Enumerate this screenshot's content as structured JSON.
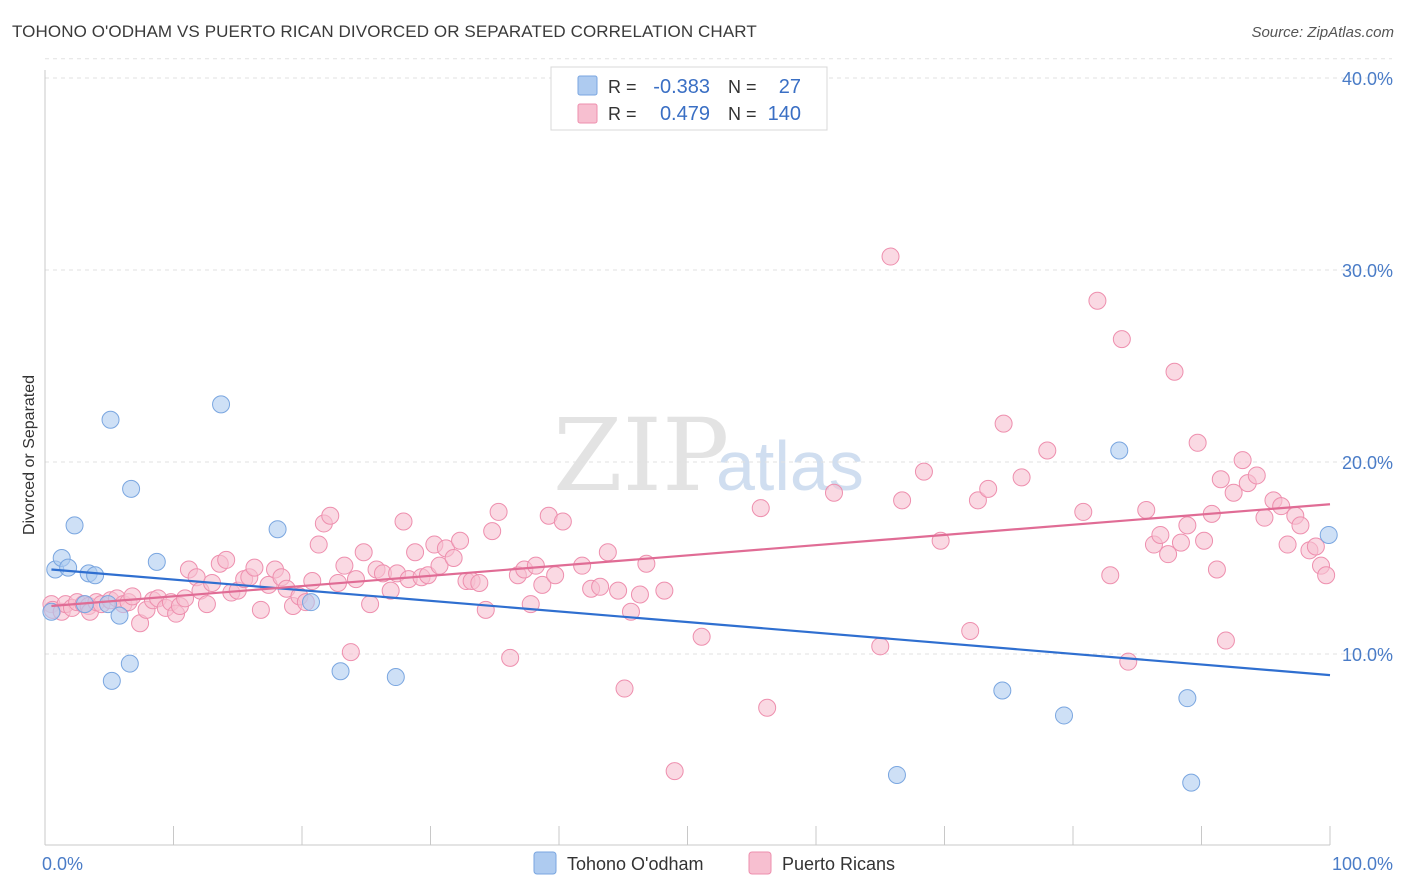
{
  "header": {
    "title": "TOHONO O'ODHAM VS PUERTO RICAN DIVORCED OR SEPARATED CORRELATION CHART",
    "source": "Source: ZipAtlas.com"
  },
  "watermark": {
    "zip": "ZIP",
    "atlas": "atlas"
  },
  "legend": {
    "r_label": "R =",
    "n_label": "N =",
    "rows": [
      {
        "r": "-0.383",
        "n": "27"
      },
      {
        "r": "0.479",
        "n": "140"
      }
    ]
  },
  "bottom_legend": [
    "Tohono O'odham",
    "Puerto Ricans"
  ],
  "colors": {
    "blue_fill": "#aecbf0",
    "blue_stroke": "#7aa6e0",
    "blue_line": "#2f6fd0",
    "pink_fill": "#f7bfd0",
    "pink_stroke": "#ee8fae",
    "pink_line": "#e06c95",
    "tick_text": "#4a7cc7"
  },
  "chart_data": {
    "type": "scatter",
    "title": "TOHONO O'ODHAM VS PUERTO RICAN DIVORCED OR SEPARATED CORRELATION CHART",
    "ylabel": "Divorced or Separated",
    "xlabel": "",
    "xlim": [
      0,
      100
    ],
    "ylim": [
      0,
      42
    ],
    "yticks": [
      10,
      20,
      30,
      40
    ],
    "ytick_labels": [
      "10.0%",
      "20.0%",
      "30.0%",
      "40.0%"
    ],
    "xtick_labels": [
      "0.0%",
      "100.0%"
    ],
    "grid": true,
    "legend_position": "top-center",
    "series": [
      {
        "name": "Tohono O'odham",
        "color": "blue",
        "trend": {
          "x": [
            0.5,
            100
          ],
          "y": [
            14.4,
            8.9
          ]
        },
        "points": [
          [
            0.5,
            12.2
          ],
          [
            0.8,
            14.4
          ],
          [
            1.3,
            15.0
          ],
          [
            1.8,
            14.5
          ],
          [
            2.3,
            16.7
          ],
          [
            3.1,
            12.6
          ],
          [
            3.4,
            14.2
          ],
          [
            3.9,
            14.1
          ],
          [
            4.9,
            12.6
          ],
          [
            5.1,
            22.2
          ],
          [
            5.2,
            8.6
          ],
          [
            5.8,
            12.0
          ],
          [
            6.6,
            9.5
          ],
          [
            6.7,
            18.6
          ],
          [
            8.7,
            14.8
          ],
          [
            13.7,
            23.0
          ],
          [
            18.1,
            16.5
          ],
          [
            20.7,
            12.7
          ],
          [
            23.0,
            9.1
          ],
          [
            27.3,
            8.8
          ],
          [
            66.3,
            3.7
          ],
          [
            74.5,
            8.1
          ],
          [
            79.3,
            6.8
          ],
          [
            83.6,
            20.6
          ],
          [
            88.9,
            7.7
          ],
          [
            89.2,
            3.3
          ],
          [
            99.9,
            16.2
          ]
        ]
      },
      {
        "name": "Puerto Ricans",
        "color": "pink",
        "trend": {
          "x": [
            0.5,
            100
          ],
          "y": [
            12.5,
            17.8
          ]
        },
        "points": [
          [
            0.5,
            12.6
          ],
          [
            0.6,
            12.3
          ],
          [
            1.3,
            12.2
          ],
          [
            1.6,
            12.6
          ],
          [
            2.1,
            12.4
          ],
          [
            2.5,
            12.7
          ],
          [
            3.0,
            12.6
          ],
          [
            3.4,
            12.5
          ],
          [
            3.5,
            12.2
          ],
          [
            4.0,
            12.7
          ],
          [
            4.4,
            12.6
          ],
          [
            5.1,
            12.8
          ],
          [
            5.6,
            12.9
          ],
          [
            6.1,
            12.6
          ],
          [
            6.5,
            12.7
          ],
          [
            6.8,
            13.0
          ],
          [
            7.4,
            11.6
          ],
          [
            7.9,
            12.3
          ],
          [
            8.4,
            12.8
          ],
          [
            8.8,
            12.9
          ],
          [
            9.4,
            12.4
          ],
          [
            9.8,
            12.7
          ],
          [
            10.2,
            12.1
          ],
          [
            10.5,
            12.5
          ],
          [
            10.9,
            12.9
          ],
          [
            11.2,
            14.4
          ],
          [
            11.8,
            14.0
          ],
          [
            12.1,
            13.3
          ],
          [
            12.6,
            12.6
          ],
          [
            13.0,
            13.7
          ],
          [
            13.6,
            14.7
          ],
          [
            14.1,
            14.9
          ],
          [
            14.5,
            13.2
          ],
          [
            15.0,
            13.3
          ],
          [
            15.5,
            13.9
          ],
          [
            15.9,
            14.0
          ],
          [
            16.3,
            14.5
          ],
          [
            16.8,
            12.3
          ],
          [
            17.4,
            13.6
          ],
          [
            17.9,
            14.4
          ],
          [
            18.4,
            14.0
          ],
          [
            18.8,
            13.4
          ],
          [
            19.3,
            12.5
          ],
          [
            19.8,
            13.0
          ],
          [
            20.3,
            12.7
          ],
          [
            20.8,
            13.8
          ],
          [
            21.3,
            15.7
          ],
          [
            21.7,
            16.8
          ],
          [
            22.2,
            17.2
          ],
          [
            22.8,
            13.7
          ],
          [
            23.3,
            14.6
          ],
          [
            23.8,
            10.1
          ],
          [
            24.2,
            13.9
          ],
          [
            24.8,
            15.3
          ],
          [
            25.3,
            12.6
          ],
          [
            25.8,
            14.4
          ],
          [
            26.3,
            14.2
          ],
          [
            26.9,
            13.3
          ],
          [
            27.4,
            14.2
          ],
          [
            27.9,
            16.9
          ],
          [
            28.3,
            13.9
          ],
          [
            28.8,
            15.3
          ],
          [
            29.3,
            14.0
          ],
          [
            29.8,
            14.1
          ],
          [
            30.3,
            15.7
          ],
          [
            30.7,
            14.6
          ],
          [
            31.2,
            15.5
          ],
          [
            31.8,
            15.0
          ],
          [
            32.3,
            15.9
          ],
          [
            32.8,
            13.8
          ],
          [
            33.2,
            13.8
          ],
          [
            33.8,
            13.7
          ],
          [
            34.3,
            12.3
          ],
          [
            34.8,
            16.4
          ],
          [
            35.3,
            17.4
          ],
          [
            36.2,
            9.8
          ],
          [
            36.8,
            14.1
          ],
          [
            37.3,
            14.4
          ],
          [
            37.8,
            12.6
          ],
          [
            38.2,
            14.6
          ],
          [
            38.7,
            13.6
          ],
          [
            39.2,
            17.2
          ],
          [
            39.7,
            14.1
          ],
          [
            40.3,
            16.9
          ],
          [
            41.8,
            14.6
          ],
          [
            42.5,
            13.4
          ],
          [
            43.2,
            13.5
          ],
          [
            43.8,
            15.3
          ],
          [
            44.6,
            13.3
          ],
          [
            45.1,
            8.2
          ],
          [
            45.6,
            12.2
          ],
          [
            46.3,
            13.1
          ],
          [
            46.8,
            14.7
          ],
          [
            48.2,
            13.3
          ],
          [
            49.0,
            3.9
          ],
          [
            51.1,
            10.9
          ],
          [
            55.7,
            17.6
          ],
          [
            56.2,
            7.2
          ],
          [
            61.4,
            18.4
          ],
          [
            65.0,
            10.4
          ],
          [
            65.8,
            30.7
          ],
          [
            66.7,
            18.0
          ],
          [
            68.4,
            19.5
          ],
          [
            69.7,
            15.9
          ],
          [
            72.0,
            11.2
          ],
          [
            72.6,
            18.0
          ],
          [
            73.4,
            18.6
          ],
          [
            74.6,
            22.0
          ],
          [
            76.0,
            19.2
          ],
          [
            78.0,
            20.6
          ],
          [
            80.8,
            17.4
          ],
          [
            81.9,
            28.4
          ],
          [
            82.9,
            14.1
          ],
          [
            83.8,
            26.4
          ],
          [
            84.3,
            9.6
          ],
          [
            85.7,
            17.5
          ],
          [
            86.3,
            15.7
          ],
          [
            86.8,
            16.2
          ],
          [
            87.4,
            15.2
          ],
          [
            87.9,
            24.7
          ],
          [
            88.4,
            15.8
          ],
          [
            88.9,
            16.7
          ],
          [
            89.7,
            21.0
          ],
          [
            90.2,
            15.9
          ],
          [
            90.8,
            17.3
          ],
          [
            91.2,
            14.4
          ],
          [
            91.5,
            19.1
          ],
          [
            91.9,
            10.7
          ],
          [
            92.5,
            18.4
          ],
          [
            93.2,
            20.1
          ],
          [
            93.6,
            18.9
          ],
          [
            94.3,
            19.3
          ],
          [
            94.9,
            17.1
          ],
          [
            95.6,
            18.0
          ],
          [
            96.2,
            17.7
          ],
          [
            96.7,
            15.7
          ],
          [
            97.3,
            17.2
          ],
          [
            97.7,
            16.7
          ],
          [
            98.4,
            15.4
          ],
          [
            98.9,
            15.6
          ],
          [
            99.3,
            14.6
          ],
          [
            99.7,
            14.1
          ]
        ]
      }
    ]
  }
}
